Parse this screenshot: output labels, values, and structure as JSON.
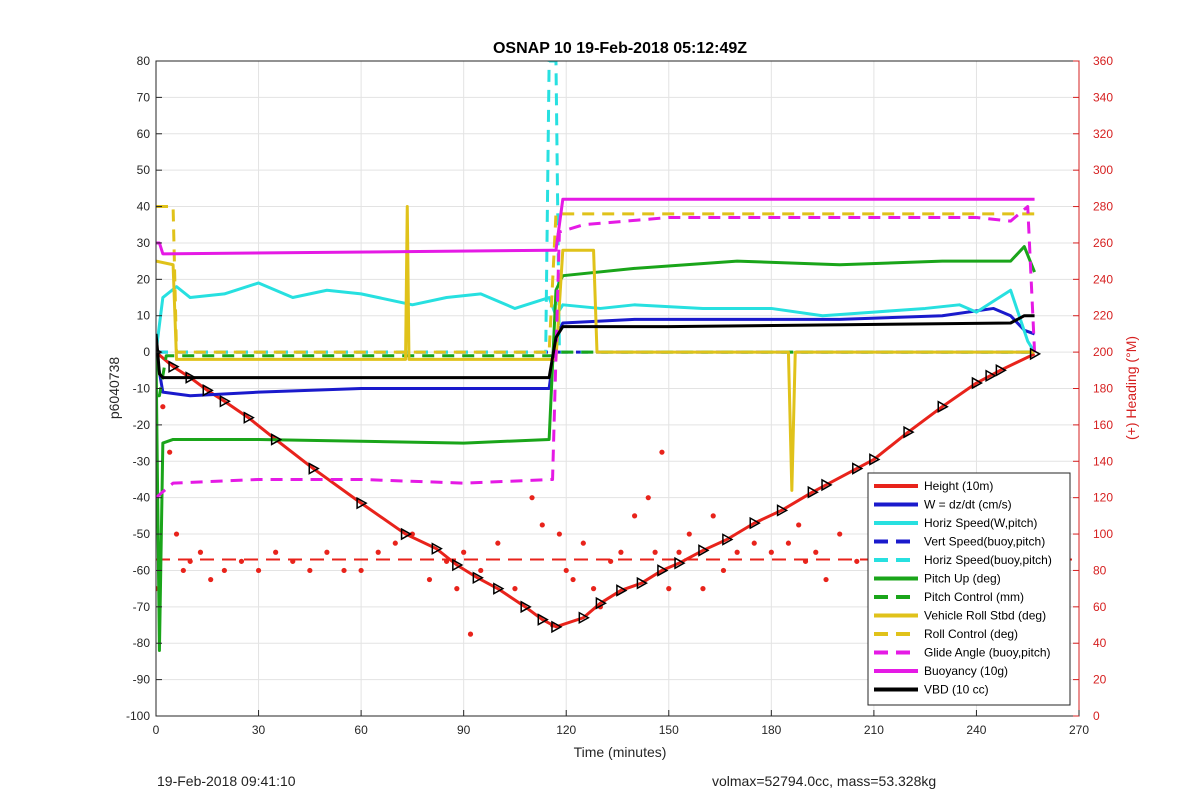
{
  "chart_data": {
    "type": "line",
    "title": "OSNAP 10 19-Feb-2018 05:12:49Z",
    "xlabel": "Time (minutes)",
    "ylabel": "p6040738",
    "ylabel_right": "(+) Heading (°M)",
    "xlim": [
      0,
      270
    ],
    "ylim": [
      -100,
      80
    ],
    "ylim_right": [
      0,
      360
    ],
    "xticks": [
      "0",
      "30",
      "60",
      "90",
      "120",
      "150",
      "180",
      "210",
      "240",
      "270"
    ],
    "yticks": [
      "-100",
      "-90",
      "-80",
      "-70",
      "-60",
      "-50",
      "-40",
      "-30",
      "-20",
      "-10",
      "0",
      "10",
      "20",
      "30",
      "40",
      "50",
      "60",
      "70",
      "80"
    ],
    "yticks_right": [
      "0",
      "20",
      "40",
      "60",
      "80",
      "100",
      "120",
      "140",
      "160",
      "180",
      "200",
      "220",
      "240",
      "260",
      "280",
      "300",
      "320",
      "340",
      "360"
    ],
    "grid": true,
    "legend_position": "bottom-right",
    "colors": {
      "red": "#e8231b",
      "blue": "#1a1acc",
      "cyan": "#27e0e0",
      "green": "#1aa51a",
      "yellow": "#e0c21a",
      "magenta": "#e51ae5",
      "black": "#000000",
      "axis_right": "#d62020"
    },
    "series": [
      {
        "name": "Height (10m)",
        "color": "#e8231b",
        "style": "solid",
        "marker": "triangle",
        "x": [
          0,
          5,
          10,
          15,
          20,
          27,
          35,
          46,
          60,
          73,
          82,
          88,
          94,
          100,
          108,
          113,
          117,
          125,
          130,
          136,
          142,
          148,
          153,
          160,
          167,
          175,
          183,
          192,
          196,
          205,
          210,
          220,
          230,
          240,
          244,
          247,
          257
        ],
        "y": [
          0,
          -4,
          -7,
          -10.5,
          -13.5,
          -18,
          -24,
          -32,
          -41.5,
          -50,
          -54,
          -58.5,
          -62,
          -65,
          -70,
          -73.5,
          -75.5,
          -73,
          -69,
          -65.5,
          -63.5,
          -60,
          -58,
          -54.5,
          -51.5,
          -47,
          -43.5,
          -38.5,
          -36.5,
          -32,
          -29.5,
          -22,
          -15,
          -8.5,
          -6.5,
          -5,
          -0.5
        ]
      },
      {
        "name": "W = dz/dt (cm/s)",
        "color": "#1a1acc",
        "style": "solid",
        "x": [
          0,
          2,
          10,
          30,
          60,
          90,
          115,
          117,
          119,
          140,
          170,
          200,
          230,
          245,
          250,
          254,
          257
        ],
        "y": [
          0,
          -11,
          -12,
          -11,
          -10,
          -10,
          -10,
          4,
          8,
          9,
          9,
          9,
          10,
          12,
          10,
          6,
          5
        ]
      },
      {
        "name": "Horiz Speed(W,pitch)",
        "color": "#27e0e0",
        "style": "solid",
        "x": [
          0,
          2,
          6,
          10,
          20,
          30,
          40,
          50,
          60,
          70,
          75,
          85,
          95,
          105,
          115,
          117,
          119,
          130,
          140,
          160,
          180,
          195,
          210,
          225,
          235,
          240,
          245,
          250,
          255,
          257
        ],
        "y": [
          0,
          15,
          18,
          15,
          16,
          19,
          15,
          17,
          16,
          14,
          13,
          15,
          16,
          12,
          15,
          10,
          13,
          12,
          13,
          12,
          12,
          10,
          11,
          12,
          13,
          11,
          14,
          17,
          3,
          0
        ]
      },
      {
        "name": "Vert Speed(buoy,pitch)",
        "color": "#1a1acc",
        "style": "dashed",
        "x": [
          0,
          257
        ],
        "y": [
          0,
          0
        ]
      },
      {
        "name": "Horiz Speed(buoy,pitch)",
        "color": "#27e0e0",
        "style": "dashed",
        "x": [
          0,
          114,
          115,
          116,
          117,
          118,
          257
        ],
        "y": [
          0,
          0,
          80,
          80,
          80,
          0,
          0
        ]
      },
      {
        "name": "Pitch Up (deg)",
        "color": "#1aa51a",
        "style": "solid",
        "x": [
          0,
          1,
          2,
          5,
          30,
          60,
          90,
          115,
          117,
          119,
          140,
          170,
          200,
          230,
          250,
          254,
          257
        ],
        "y": [
          0,
          -82,
          -25,
          -24,
          -24,
          -24.5,
          -25,
          -24,
          17,
          21,
          23,
          25,
          24,
          25,
          25,
          29,
          22
        ]
      },
      {
        "name": "Pitch Control (mm)",
        "color": "#1aa51a",
        "style": "dashed",
        "x": [
          0,
          1,
          3,
          40,
          80,
          116,
          118,
          257
        ],
        "y": [
          -12,
          -12,
          -1,
          -1,
          -1,
          -1,
          0,
          0
        ]
      },
      {
        "name": "Vehicle Roll Stbd (deg)",
        "color": "#e0c21a",
        "style": "solid",
        "x": [
          0,
          5,
          6,
          7,
          73,
          73.5,
          74,
          117,
          119,
          128,
          129,
          130,
          150,
          185,
          186,
          187,
          257
        ],
        "y": [
          25,
          24,
          -2,
          -2,
          -2,
          40,
          -2,
          -2,
          28,
          28,
          0,
          0,
          0,
          0,
          -38,
          0,
          0
        ]
      },
      {
        "name": "Roll Control (deg)",
        "color": "#e0c21a",
        "style": "dashed",
        "x": [
          0,
          5,
          6,
          7,
          115,
          117,
          119,
          257
        ],
        "y": [
          40,
          40,
          0,
          0,
          0,
          38,
          38,
          38
        ]
      },
      {
        "name": "Glide Angle (buoy,pitch)",
        "color": "#e51ae5",
        "style": "dashed",
        "x": [
          0,
          5,
          30,
          60,
          90,
          116,
          118,
          125,
          150,
          180,
          210,
          240,
          250,
          255,
          257
        ],
        "y": [
          -40,
          -36,
          -35,
          -35,
          -36,
          -35,
          33,
          35,
          37,
          37,
          37,
          37,
          36,
          40,
          0
        ]
      },
      {
        "name": "Buoyancy (10g)",
        "color": "#e51ae5",
        "style": "solid",
        "x": [
          0,
          1,
          2,
          116,
          117,
          119,
          257
        ],
        "y": [
          30,
          30,
          27,
          28,
          28,
          42,
          42
        ]
      },
      {
        "name": "VBD (10 cc)",
        "color": "#000000",
        "style": "solid",
        "x": [
          0,
          0.5,
          1,
          2,
          115,
          117,
          119,
          150,
          250,
          254,
          257
        ],
        "y": [
          5,
          0,
          -6,
          -7,
          -7,
          4,
          7,
          7,
          8,
          10,
          10
        ]
      }
    ],
    "heading": {
      "name": "(+) Heading",
      "style": "dots",
      "color": "#e8231b",
      "axis": "right",
      "reference_line": 86,
      "x": [
        0,
        2,
        4,
        6,
        8,
        10,
        13,
        16,
        20,
        25,
        30,
        35,
        40,
        45,
        50,
        55,
        60,
        65,
        70,
        75,
        80,
        85,
        88,
        90,
        92,
        95,
        100,
        105,
        110,
        113,
        116,
        118,
        120,
        122,
        125,
        128,
        130,
        133,
        136,
        140,
        144,
        146,
        148,
        150,
        153,
        156,
        160,
        163,
        166,
        170,
        175,
        180,
        185,
        188,
        190,
        193,
        196,
        200,
        205,
        210,
        215,
        220,
        225,
        230,
        233,
        236,
        240,
        243,
        246,
        248,
        250,
        253,
        255
      ],
      "y": [
        70,
        170,
        145,
        100,
        80,
        85,
        90,
        75,
        80,
        85,
        80,
        90,
        85,
        80,
        90,
        80,
        80,
        90,
        95,
        100,
        75,
        85,
        70,
        90,
        45,
        80,
        95,
        70,
        120,
        105,
        50,
        100,
        80,
        75,
        95,
        70,
        60,
        85,
        90,
        110,
        120,
        90,
        145,
        70,
        90,
        100,
        70,
        110,
        80,
        90,
        95,
        90,
        95,
        105,
        85,
        90,
        75,
        100,
        85,
        80,
        85,
        70,
        80,
        85,
        60,
        90,
        55,
        130,
        85,
        65,
        60,
        55,
        45
      ]
    }
  },
  "footer": {
    "left": "19-Feb-2018 09:41:10",
    "right": "volmax=52794.0cc, mass=53.328kg"
  }
}
